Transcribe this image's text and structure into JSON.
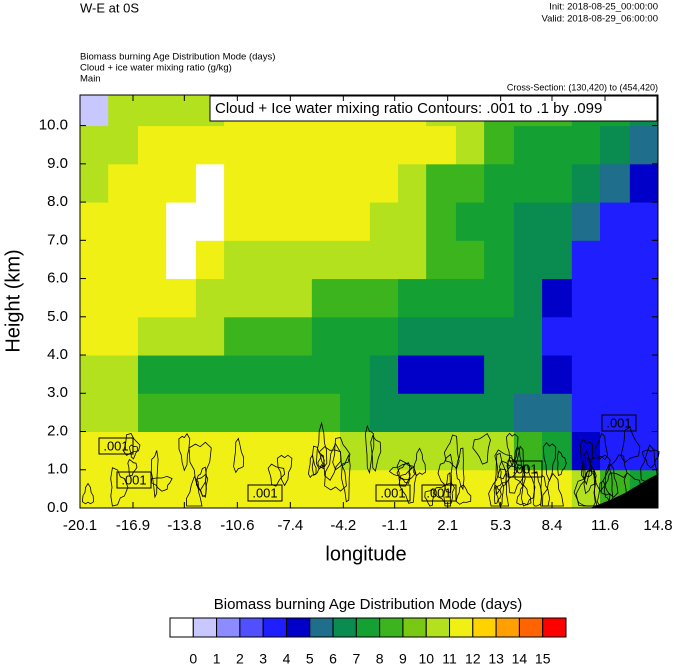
{
  "chart_data": {
    "type": "heatmap",
    "title": "W-E at 0S",
    "init": "Init: 2018-08-25_00:00:00",
    "valid": "Valid: 2018-08-29_06:00:00",
    "descriptions": [
      "Biomass burning Age Distribution Mode   (days)",
      "Cloud + ice water mixing ratio   (g/kg)",
      "Main"
    ],
    "cross_section": "Cross-Section: (130,420) to (454,420)",
    "contour_title": "Cloud + Ice water mixing ratio Contours: .001 to .1 by .099",
    "xlabel": "longitude",
    "ylabel": "Height (km)",
    "xlim": [
      -20.1,
      14.8
    ],
    "ylim": [
      0,
      10.8
    ],
    "xticks": [
      -20.1,
      -16.9,
      -13.8,
      -10.6,
      -7.4,
      -4.2,
      -1.1,
      2.1,
      5.3,
      8.4,
      11.6,
      14.8
    ],
    "yticks": [
      {
        "value": 0,
        "label": "0.0"
      },
      {
        "value": 1,
        "label": "1.0"
      },
      {
        "value": 2,
        "label": "2.0"
      },
      {
        "value": 3,
        "label": "3.0"
      },
      {
        "value": 4,
        "label": "4.0"
      },
      {
        "value": 5,
        "label": "5.0"
      },
      {
        "value": 6,
        "label": "6.0"
      },
      {
        "value": 7,
        "label": "7.0"
      },
      {
        "value": 8,
        "label": "8.0"
      },
      {
        "value": 9,
        "label": "9.0"
      },
      {
        "value": 10,
        "label": "10.0"
      }
    ],
    "x_edges": [
      -20.1,
      -18.4,
      -16.6,
      -14.9,
      -13.1,
      -11.4,
      -9.6,
      -7.9,
      -6.1,
      -4.4,
      -2.6,
      -0.9,
      0.8,
      2.6,
      4.3,
      6.1,
      7.8,
      9.6,
      11.3,
      13.1,
      14.8
    ],
    "y_edges": [
      0,
      1,
      2,
      3,
      4,
      5,
      6,
      7,
      8,
      9,
      10,
      10.8
    ],
    "z": [
      [
        11.5,
        11.5,
        11.5,
        11.5,
        11.5,
        11.5,
        11.5,
        11.5,
        11.5,
        11.5,
        11.5,
        11.5,
        11.5,
        11.5,
        11.5,
        11.5,
        11.5,
        10.5,
        8.5,
        7.5
      ],
      [
        11.5,
        11.5,
        11.5,
        11.5,
        11.5,
        11.5,
        11.5,
        11.5,
        11.5,
        10.5,
        10.5,
        10.5,
        10.5,
        10.5,
        10.5,
        8.5,
        7.5,
        4.5,
        3.5,
        3.5
      ],
      [
        10.5,
        10.5,
        8.5,
        8.5,
        8.5,
        8.5,
        8.5,
        8.5,
        8.5,
        7.5,
        6.5,
        6.5,
        6.5,
        6.5,
        6.5,
        5.5,
        5.5,
        3.5,
        3.5,
        3.5
      ],
      [
        10.5,
        10.5,
        7.5,
        7.5,
        7.5,
        7.5,
        7.5,
        7.5,
        7.5,
        7.5,
        6.5,
        4.5,
        4.5,
        4.5,
        6.5,
        6.5,
        4.5,
        3.5,
        3.5,
        3.5
      ],
      [
        11.5,
        11.5,
        10.5,
        10.5,
        10.5,
        8.5,
        8.5,
        8.5,
        7.5,
        7.5,
        7.5,
        6.5,
        6.5,
        6.5,
        6.5,
        6.5,
        3.5,
        3.5,
        3.5,
        3.5
      ],
      [
        11.5,
        11.5,
        11.5,
        11.5,
        10.5,
        10.5,
        10.5,
        10.5,
        8.5,
        8.5,
        8.5,
        7.5,
        7.5,
        7.5,
        7.5,
        6.5,
        4.5,
        3.5,
        3.5,
        3.5
      ],
      [
        11.5,
        11.5,
        11.5,
        -0.5,
        11.5,
        10.5,
        10.5,
        10.5,
        10.5,
        10.5,
        10.5,
        10.5,
        8.5,
        8.5,
        7.5,
        6.5,
        6.5,
        3.5,
        3.5,
        3.5
      ],
      [
        11.5,
        11.5,
        11.5,
        -0.5,
        -0.5,
        11.5,
        11.5,
        11.5,
        11.5,
        11.5,
        10.5,
        10.5,
        8.5,
        7.5,
        7.5,
        6.5,
        6.5,
        5.5,
        3.5,
        3.5
      ],
      [
        10.5,
        11.5,
        11.5,
        11.5,
        -0.5,
        11.5,
        11.5,
        11.5,
        11.5,
        11.5,
        11.5,
        10.5,
        8.5,
        8.5,
        7.5,
        7.5,
        7.5,
        6.5,
        5.5,
        4.5
      ],
      [
        10.5,
        10.5,
        11.5,
        11.5,
        11.5,
        11.5,
        11.5,
        11.5,
        11.5,
        11.5,
        11.5,
        11.5,
        11.5,
        10.5,
        8.5,
        7.5,
        7.5,
        7.5,
        6.5,
        5.5
      ],
      [
        0.5,
        10.5,
        10.5,
        10.5,
        10.5,
        11.5,
        11.5,
        11.5,
        11.5,
        11.5,
        11.5,
        11.5,
        10.5,
        10.5,
        8.5,
        8.5,
        8.5,
        7.5,
        7.5,
        6.5
      ]
    ],
    "contour_labels": [
      ".001",
      ".001",
      ".001",
      ".001",
      ".001",
      ".001",
      ".001"
    ],
    "colorbar": {
      "title": "Biomass burning Age Distribution Mode  (days)",
      "levels": [
        0,
        1,
        2,
        3,
        4,
        5,
        6,
        7,
        8,
        9,
        10,
        11,
        12,
        13,
        14,
        15
      ],
      "colors": [
        "#ffffff",
        "#c8c8ff",
        "#8c8cff",
        "#5050ff",
        "#1e1eff",
        "#0000c8",
        "#1e6e8c",
        "#0a8c50",
        "#14a032",
        "#3cb41e",
        "#78c814",
        "#b4e11e",
        "#f0f014",
        "#ffd200",
        "#ffa000",
        "#ff6400",
        "#ff0000"
      ]
    }
  }
}
